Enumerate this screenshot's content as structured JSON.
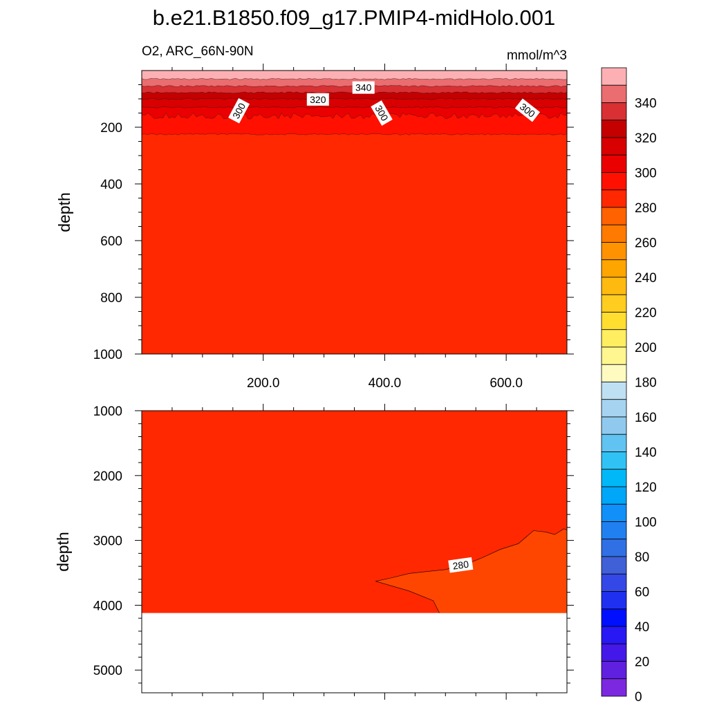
{
  "title": "b.e21.B1850.f09_g17.PMIP4-midHolo.001",
  "chart_data": [
    {
      "type": "contour",
      "panel": "top",
      "left_label": "O2, ARC_66N-90N",
      "right_label": "mmol/m^3",
      "ylabel": "depth",
      "y_reversed": true,
      "xlim": [
        0,
        700
      ],
      "ylim": [
        0,
        1000
      ],
      "x_ticks": [
        200,
        400,
        600
      ],
      "x_tick_labels": [
        "200.0",
        "400.0",
        "600.0"
      ],
      "y_ticks": [
        200,
        400,
        600,
        800,
        1000
      ],
      "y_tick_labels": [
        "200",
        "400",
        "600",
        "800",
        "1000"
      ],
      "bands": [
        {
          "upper_depth": 0,
          "lower_depth": 30,
          "value_range": [
            350,
            360
          ],
          "color": "#fdb0b3"
        },
        {
          "upper_depth": 30,
          "lower_depth": 55,
          "value_range": [
            340,
            350
          ],
          "color": "#ea6d6f"
        },
        {
          "upper_depth": 55,
          "lower_depth": 78,
          "value_range": [
            330,
            340
          ],
          "color": "#d83033"
        },
        {
          "upper_depth": 78,
          "lower_depth": 100,
          "value_range": [
            320,
            330
          ],
          "color": "#c40000"
        },
        {
          "upper_depth": 100,
          "lower_depth": 130,
          "value_range": [
            310,
            320
          ],
          "color": "#d80000"
        },
        {
          "upper_depth": 130,
          "lower_depth": 160,
          "value_range": [
            300,
            310
          ],
          "color": "#ea0000"
        },
        {
          "upper_depth": 160,
          "lower_depth": 225,
          "value_range": [
            290,
            300
          ],
          "color": "#ff1000"
        },
        {
          "upper_depth": 225,
          "lower_depth": 1000,
          "value_range": [
            280,
            290
          ],
          "color": "#ff2800"
        }
      ],
      "contour_labels": [
        {
          "text": "340",
          "x": 365,
          "depth": 60
        },
        {
          "text": "320",
          "x": 290,
          "depth": 102
        },
        {
          "text": "300",
          "x": 160,
          "depth": 142
        },
        {
          "text": "300",
          "x": 395,
          "depth": 150
        },
        {
          "text": "300",
          "x": 635,
          "depth": 140
        }
      ]
    },
    {
      "type": "contour",
      "panel": "bottom",
      "ylabel": "depth",
      "y_reversed": true,
      "xlim": [
        0,
        700
      ],
      "ylim": [
        1000,
        5350
      ],
      "y_ticks": [
        1000,
        2000,
        3000,
        4000,
        5000
      ],
      "y_tick_labels": [
        "1000",
        "2000",
        "3000",
        "4000",
        "5000"
      ],
      "bottom_depth": 4120,
      "background": {
        "value_range": [
          280,
          290
        ],
        "color": "#ff2800"
      },
      "low_region": {
        "value_range": [
          270,
          280
        ],
        "color": "#ff4600",
        "boundary": [
          [
            385,
            3630
          ],
          [
            410,
            3580
          ],
          [
            440,
            3510
          ],
          [
            470,
            3480
          ],
          [
            500,
            3450
          ],
          [
            530,
            3380
          ],
          [
            560,
            3270
          ],
          [
            590,
            3140
          ],
          [
            620,
            3050
          ],
          [
            645,
            2850
          ],
          [
            665,
            2870
          ],
          [
            680,
            2910
          ],
          [
            695,
            2820
          ],
          [
            700,
            2840
          ]
        ],
        "closing": [
          [
            700,
            4120
          ],
          [
            490,
            4120
          ],
          [
            480,
            3930
          ],
          [
            440,
            3780
          ],
          [
            385,
            3630
          ]
        ]
      },
      "contour_labels": [
        {
          "text": "280",
          "x": 525,
          "depth": 3380
        }
      ]
    }
  ],
  "colorbar": {
    "tick_labels": [
      "340",
      "320",
      "300",
      "280",
      "260",
      "240",
      "220",
      "200",
      "180",
      "160",
      "140",
      "120",
      "100",
      "80",
      "60",
      "40",
      "20",
      "0"
    ],
    "colors": [
      "#fdb0b3",
      "#ea6d6f",
      "#d83033",
      "#c40000",
      "#d80000",
      "#ea0000",
      "#ff1000",
      "#ff2800",
      "#ff6200",
      "#ff7a00",
      "#ff9200",
      "#ffa500",
      "#ffba10",
      "#ffcc20",
      "#ffde30",
      "#ffee60",
      "#fff690",
      "#fffbc0",
      "#bfe0f3",
      "#a6d4f0",
      "#8fcaee",
      "#60c3f1",
      "#30c2f4",
      "#00b8f8",
      "#00a6f8",
      "#1090f8",
      "#2080f0",
      "#3070e4",
      "#4060d8",
      "#3448e8",
      "#2030f0",
      "#0010ff",
      "#2818f4",
      "#4418e8",
      "#6020e0",
      "#7c28e0"
    ]
  }
}
